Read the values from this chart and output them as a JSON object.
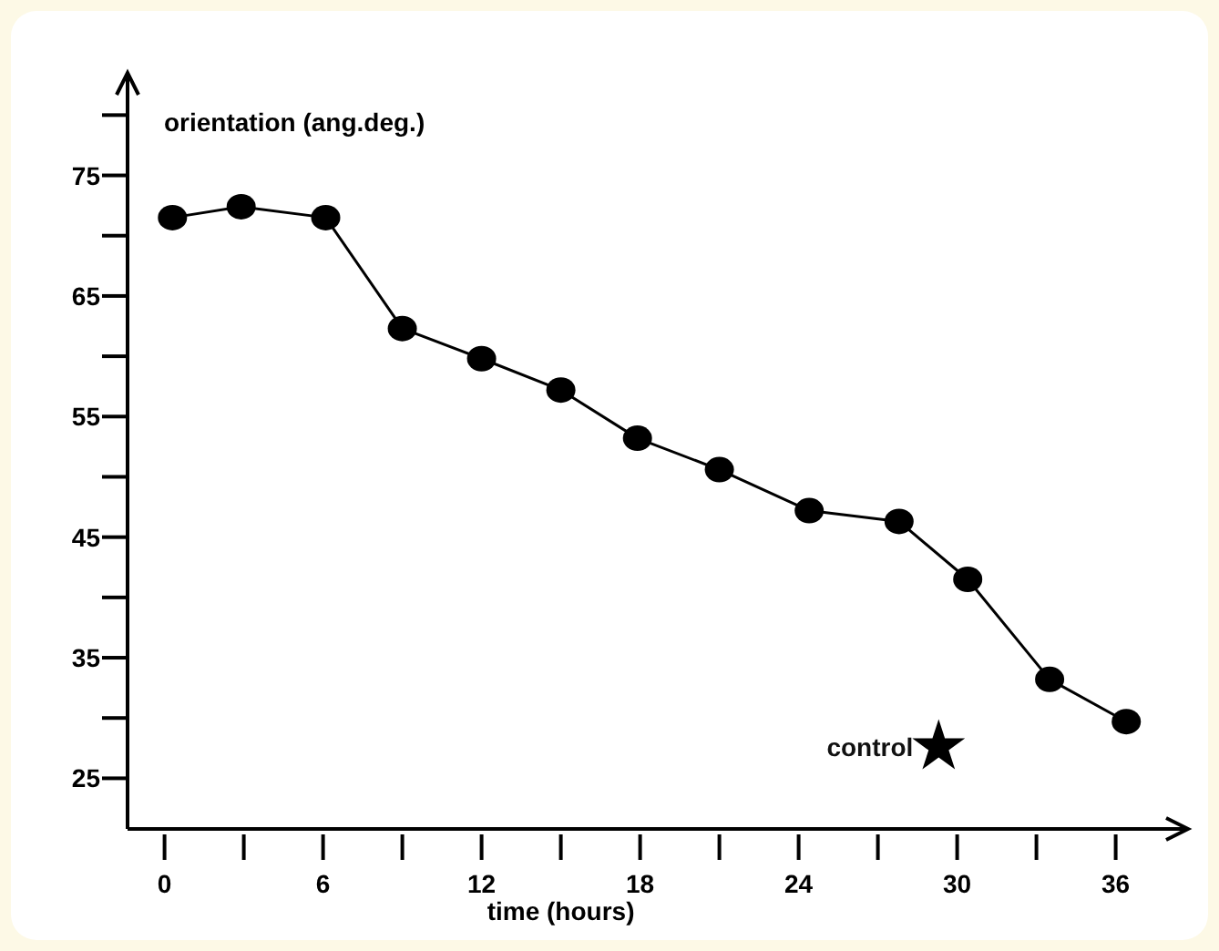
{
  "chart_data": {
    "type": "line",
    "ylabel": "orientation (ang.deg.)",
    "xlabel": "time (hours)",
    "xlim": [
      -1.4,
      38.6
    ],
    "ylim": [
      20.8,
      83.2
    ],
    "xticks": [
      0,
      {
        "value": 3,
        "label": null
      },
      6,
      {
        "value": 9,
        "label": null
      },
      12,
      {
        "value": 15,
        "label": null
      },
      18,
      {
        "value": 21,
        "label": null
      },
      24,
      {
        "value": 27,
        "label": null
      },
      30,
      {
        "value": 33,
        "label": null
      },
      36
    ],
    "yticks": [
      25,
      {
        "value": 30,
        "label": null
      },
      35,
      {
        "value": 40,
        "label": null
      },
      45,
      {
        "value": 50,
        "label": null
      },
      55,
      {
        "value": 60,
        "label": null
      },
      65,
      {
        "value": 70,
        "label": null
      },
      75,
      {
        "value": 80,
        "label": null
      }
    ],
    "grid": false,
    "marker": "circle",
    "line_style": "solid",
    "series": [
      {
        "color": "#000000",
        "x": [
          0.3,
          2.9,
          6.1,
          9.0,
          12.0,
          15.0,
          17.9,
          21.0,
          24.4,
          27.8,
          30.4,
          33.5,
          36.4
        ],
        "values": [
          71.5,
          72.4,
          71.5,
          62.3,
          59.8,
          57.2,
          53.2,
          50.6,
          47.2,
          46.3,
          41.5,
          33.2,
          29.7
        ]
      },
      {
        "type": "scatter",
        "name": "control",
        "marker": "star",
        "color": "#000000",
        "x": [
          29.3
        ],
        "values": [
          27.6
        ]
      }
    ]
  }
}
